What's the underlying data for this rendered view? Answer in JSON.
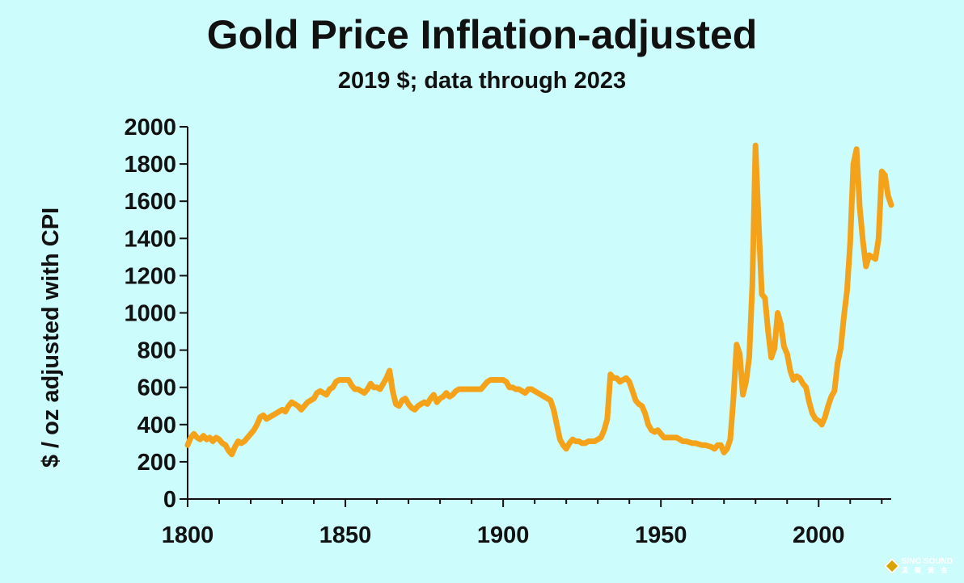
{
  "chart_data": {
    "type": "line",
    "title": "Gold Price Inflation-adjusted",
    "subtitle": "2019 $; data through 2023",
    "ylabel": "$ / oz adjusted with CPI",
    "xlabel": "",
    "xlim": [
      1800,
      2023
    ],
    "ylim": [
      0,
      2000
    ],
    "x_ticks": [
      1800,
      1850,
      1900,
      1950,
      2000
    ],
    "y_ticks": [
      0,
      200,
      400,
      600,
      800,
      1000,
      1200,
      1400,
      1600,
      1800,
      2000
    ],
    "grid": false,
    "series": [
      {
        "color": "#f5a21b",
        "points": [
          [
            1800,
            290
          ],
          [
            1801,
            330
          ],
          [
            1802,
            350
          ],
          [
            1803,
            330
          ],
          [
            1804,
            320
          ],
          [
            1805,
            340
          ],
          [
            1806,
            320
          ],
          [
            1807,
            330
          ],
          [
            1808,
            310
          ],
          [
            1809,
            330
          ],
          [
            1810,
            320
          ],
          [
            1811,
            300
          ],
          [
            1812,
            290
          ],
          [
            1813,
            260
          ],
          [
            1814,
            240
          ],
          [
            1815,
            280
          ],
          [
            1816,
            310
          ],
          [
            1817,
            300
          ],
          [
            1818,
            310
          ],
          [
            1819,
            330
          ],
          [
            1820,
            350
          ],
          [
            1821,
            370
          ],
          [
            1822,
            400
          ],
          [
            1823,
            440
          ],
          [
            1824,
            450
          ],
          [
            1825,
            430
          ],
          [
            1826,
            440
          ],
          [
            1827,
            450
          ],
          [
            1828,
            460
          ],
          [
            1829,
            470
          ],
          [
            1830,
            480
          ],
          [
            1831,
            470
          ],
          [
            1832,
            500
          ],
          [
            1833,
            520
          ],
          [
            1834,
            510
          ],
          [
            1835,
            500
          ],
          [
            1836,
            480
          ],
          [
            1837,
            500
          ],
          [
            1838,
            520
          ],
          [
            1839,
            530
          ],
          [
            1840,
            540
          ],
          [
            1841,
            570
          ],
          [
            1842,
            580
          ],
          [
            1843,
            570
          ],
          [
            1844,
            560
          ],
          [
            1845,
            590
          ],
          [
            1846,
            600
          ],
          [
            1847,
            630
          ],
          [
            1848,
            640
          ],
          [
            1849,
            640
          ],
          [
            1850,
            640
          ],
          [
            1851,
            640
          ],
          [
            1852,
            610
          ],
          [
            1853,
            590
          ],
          [
            1854,
            590
          ],
          [
            1855,
            580
          ],
          [
            1856,
            570
          ],
          [
            1857,
            590
          ],
          [
            1858,
            620
          ],
          [
            1859,
            600
          ],
          [
            1860,
            600
          ],
          [
            1861,
            590
          ],
          [
            1862,
            620
          ],
          [
            1863,
            650
          ],
          [
            1864,
            690
          ],
          [
            1865,
            580
          ],
          [
            1866,
            510
          ],
          [
            1867,
            500
          ],
          [
            1868,
            530
          ],
          [
            1869,
            540
          ],
          [
            1870,
            510
          ],
          [
            1871,
            490
          ],
          [
            1872,
            480
          ],
          [
            1873,
            500
          ],
          [
            1874,
            510
          ],
          [
            1875,
            520
          ],
          [
            1876,
            510
          ],
          [
            1877,
            540
          ],
          [
            1878,
            560
          ],
          [
            1879,
            520
          ],
          [
            1880,
            540
          ],
          [
            1881,
            550
          ],
          [
            1882,
            570
          ],
          [
            1883,
            550
          ],
          [
            1884,
            560
          ],
          [
            1885,
            580
          ],
          [
            1886,
            590
          ],
          [
            1887,
            590
          ],
          [
            1888,
            590
          ],
          [
            1889,
            590
          ],
          [
            1890,
            590
          ],
          [
            1891,
            590
          ],
          [
            1892,
            590
          ],
          [
            1893,
            590
          ],
          [
            1894,
            610
          ],
          [
            1895,
            630
          ],
          [
            1896,
            640
          ],
          [
            1897,
            640
          ],
          [
            1898,
            640
          ],
          [
            1899,
            640
          ],
          [
            1900,
            640
          ],
          [
            1901,
            630
          ],
          [
            1902,
            600
          ],
          [
            1903,
            600
          ],
          [
            1904,
            590
          ],
          [
            1905,
            590
          ],
          [
            1906,
            580
          ],
          [
            1907,
            570
          ],
          [
            1908,
            590
          ],
          [
            1909,
            590
          ],
          [
            1910,
            580
          ],
          [
            1911,
            570
          ],
          [
            1912,
            560
          ],
          [
            1913,
            550
          ],
          [
            1914,
            540
          ],
          [
            1915,
            530
          ],
          [
            1916,
            480
          ],
          [
            1917,
            400
          ],
          [
            1918,
            320
          ],
          [
            1919,
            290
          ],
          [
            1920,
            270
          ],
          [
            1921,
            300
          ],
          [
            1922,
            320
          ],
          [
            1923,
            310
          ],
          [
            1924,
            310
          ],
          [
            1925,
            300
          ],
          [
            1926,
            300
          ],
          [
            1927,
            310
          ],
          [
            1928,
            310
          ],
          [
            1929,
            310
          ],
          [
            1930,
            320
          ],
          [
            1931,
            330
          ],
          [
            1932,
            370
          ],
          [
            1933,
            430
          ],
          [
            1934,
            670
          ],
          [
            1935,
            650
          ],
          [
            1936,
            650
          ],
          [
            1937,
            630
          ],
          [
            1938,
            640
          ],
          [
            1939,
            650
          ],
          [
            1940,
            630
          ],
          [
            1941,
            580
          ],
          [
            1942,
            530
          ],
          [
            1943,
            510
          ],
          [
            1944,
            500
          ],
          [
            1945,
            460
          ],
          [
            1946,
            400
          ],
          [
            1947,
            370
          ],
          [
            1948,
            360
          ],
          [
            1949,
            370
          ],
          [
            1950,
            350
          ],
          [
            1951,
            330
          ],
          [
            1952,
            330
          ],
          [
            1953,
            330
          ],
          [
            1954,
            330
          ],
          [
            1955,
            330
          ],
          [
            1956,
            320
          ],
          [
            1957,
            310
          ],
          [
            1958,
            310
          ],
          [
            1959,
            305
          ],
          [
            1960,
            300
          ],
          [
            1961,
            300
          ],
          [
            1962,
            295
          ],
          [
            1963,
            290
          ],
          [
            1964,
            290
          ],
          [
            1965,
            285
          ],
          [
            1966,
            280
          ],
          [
            1967,
            270
          ],
          [
            1968,
            290
          ],
          [
            1969,
            290
          ],
          [
            1970,
            250
          ],
          [
            1971,
            270
          ],
          [
            1972,
            320
          ],
          [
            1973,
            540
          ],
          [
            1974,
            830
          ],
          [
            1975,
            780
          ],
          [
            1976,
            560
          ],
          [
            1977,
            630
          ],
          [
            1978,
            760
          ],
          [
            1979,
            1150
          ],
          [
            1980,
            1900
          ],
          [
            1981,
            1480
          ],
          [
            1982,
            1100
          ],
          [
            1983,
            1080
          ],
          [
            1984,
            900
          ],
          [
            1985,
            760
          ],
          [
            1986,
            810
          ],
          [
            1987,
            1000
          ],
          [
            1988,
            940
          ],
          [
            1989,
            820
          ],
          [
            1990,
            780
          ],
          [
            1991,
            690
          ],
          [
            1992,
            640
          ],
          [
            1993,
            660
          ],
          [
            1994,
            650
          ],
          [
            1995,
            620
          ],
          [
            1996,
            600
          ],
          [
            1997,
            520
          ],
          [
            1998,
            460
          ],
          [
            1999,
            430
          ],
          [
            2000,
            420
          ],
          [
            2001,
            400
          ],
          [
            2002,
            440
          ],
          [
            2003,
            500
          ],
          [
            2004,
            550
          ],
          [
            2005,
            580
          ],
          [
            2006,
            730
          ],
          [
            2007,
            810
          ],
          [
            2008,
            980
          ],
          [
            2009,
            1120
          ],
          [
            2010,
            1380
          ],
          [
            2011,
            1800
          ],
          [
            2012,
            1880
          ],
          [
            2013,
            1570
          ],
          [
            2014,
            1390
          ],
          [
            2015,
            1250
          ],
          [
            2016,
            1310
          ],
          [
            2017,
            1300
          ],
          [
            2018,
            1290
          ],
          [
            2019,
            1400
          ],
          [
            2020,
            1760
          ],
          [
            2021,
            1740
          ],
          [
            2022,
            1630
          ],
          [
            2023,
            1580
          ]
        ]
      }
    ]
  },
  "watermark": {
    "name": "SINO SOUND",
    "sub": "漢 聲 黃 金"
  }
}
